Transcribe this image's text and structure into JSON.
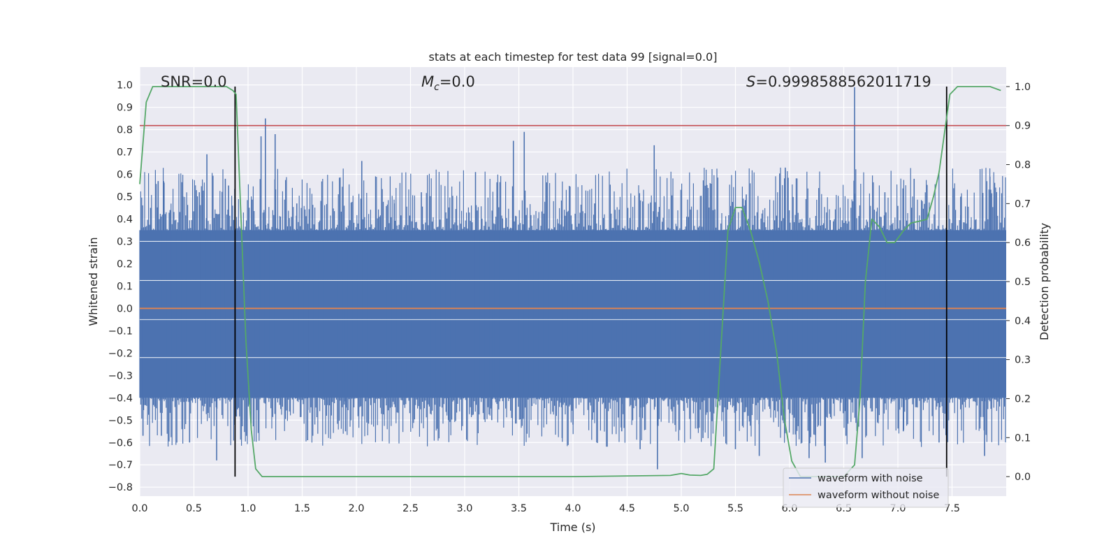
{
  "chart_data": {
    "type": "line",
    "title": "stats at each timestep for test data 99 [signal=0.0]",
    "xlabel": "Time (s)",
    "ylabel": "Whitened strain",
    "y2label": "Detection probability",
    "xlim": [
      0.0,
      8.0
    ],
    "ylim": [
      -0.84,
      1.08
    ],
    "y2lim": [
      -0.05,
      1.05
    ],
    "xticks": [
      "0.0",
      "0.5",
      "1.0",
      "1.5",
      "2.0",
      "2.5",
      "3.0",
      "3.5",
      "4.0",
      "4.5",
      "5.0",
      "5.5",
      "6.0",
      "6.5",
      "7.0",
      "7.5"
    ],
    "yticks": [
      "1.0",
      "0.9",
      "0.8",
      "0.7",
      "0.6",
      "0.5",
      "0.4",
      "0.3",
      "0.2",
      "0.1",
      "0.0",
      "−0.1",
      "−0.2",
      "−0.3",
      "−0.4",
      "−0.5",
      "−0.6",
      "−0.7",
      "−0.8"
    ],
    "y2ticks": [
      "1.0",
      "0.9",
      "0.8",
      "0.7",
      "0.6",
      "0.5",
      "0.4",
      "0.3",
      "0.2",
      "0.1",
      "0.0"
    ],
    "grid": true,
    "legend_position": "bottom-right",
    "annotations": {
      "snr": "SNR=0.0",
      "mc_symbol": "M",
      "mc_sub": "c",
      "mc_value": "=0.0",
      "s_symbol": "S",
      "s_value": "=0.9998588562011719"
    },
    "threshold_y2": 0.9,
    "vlines_x": [
      0.88,
      7.45
    ],
    "series": [
      {
        "name": "waveform with noise",
        "color": "#4c72b0",
        "noise_band": [
          -0.4,
          0.35
        ],
        "spikes": [
          {
            "x": 0.02,
            "y": 0.36
          },
          {
            "x": 0.03,
            "y": -0.57
          },
          {
            "x": 0.1,
            "y": 0.45
          },
          {
            "x": 0.17,
            "y": 0.57
          },
          {
            "x": 0.2,
            "y": -0.57
          },
          {
            "x": 0.22,
            "y": 0.57
          },
          {
            "x": 0.28,
            "y": 0.44
          },
          {
            "x": 0.4,
            "y": 0.5
          },
          {
            "x": 0.46,
            "y": -0.6
          },
          {
            "x": 0.55,
            "y": 0.52
          },
          {
            "x": 0.62,
            "y": 0.69
          },
          {
            "x": 0.71,
            "y": -0.68
          },
          {
            "x": 0.79,
            "y": 0.58
          },
          {
            "x": 0.82,
            "y": 0.55
          },
          {
            "x": 0.9,
            "y": -0.45
          },
          {
            "x": 1.12,
            "y": 0.77
          },
          {
            "x": 1.16,
            "y": 0.85
          },
          {
            "x": 1.25,
            "y": 0.78
          },
          {
            "x": 1.45,
            "y": 0.47
          },
          {
            "x": 1.55,
            "y": -0.59
          },
          {
            "x": 1.9,
            "y": -0.55
          },
          {
            "x": 2.05,
            "y": 0.66
          },
          {
            "x": 2.35,
            "y": 0.47
          },
          {
            "x": 2.6,
            "y": 0.52
          },
          {
            "x": 2.85,
            "y": -0.5
          },
          {
            "x": 3.1,
            "y": 0.61
          },
          {
            "x": 3.25,
            "y": -0.5
          },
          {
            "x": 3.45,
            "y": 0.75
          },
          {
            "x": 3.55,
            "y": 0.79
          },
          {
            "x": 3.9,
            "y": -0.58
          },
          {
            "x": 4.0,
            "y": -0.52
          },
          {
            "x": 4.2,
            "y": 0.47
          },
          {
            "x": 4.45,
            "y": -0.55
          },
          {
            "x": 4.62,
            "y": -0.63
          },
          {
            "x": 4.75,
            "y": 0.73
          },
          {
            "x": 4.78,
            "y": -0.72
          },
          {
            "x": 5.2,
            "y": -0.58
          },
          {
            "x": 5.5,
            "y": -0.63
          },
          {
            "x": 5.6,
            "y": 0.51
          },
          {
            "x": 5.72,
            "y": -0.66
          },
          {
            "x": 5.96,
            "y": 0.63
          },
          {
            "x": 6.18,
            "y": -0.67
          },
          {
            "x": 6.33,
            "y": -0.69
          },
          {
            "x": 6.52,
            "y": -0.57
          },
          {
            "x": 6.6,
            "y": 0.99
          },
          {
            "x": 6.67,
            "y": -0.67
          },
          {
            "x": 6.88,
            "y": 0.52
          },
          {
            "x": 7.05,
            "y": -0.55
          },
          {
            "x": 7.15,
            "y": 0.58
          },
          {
            "x": 7.38,
            "y": -0.6
          },
          {
            "x": 7.58,
            "y": 0.5
          },
          {
            "x": 7.8,
            "y": -0.66
          },
          {
            "x": 7.85,
            "y": 0.59
          }
        ]
      },
      {
        "name": "waveform without noise",
        "color": "#dd8452",
        "y_constant": 0.0
      },
      {
        "name": "detection probability",
        "axis": "right",
        "color": "#55a868",
        "points": [
          [
            0.0,
            0.75
          ],
          [
            0.06,
            0.96
          ],
          [
            0.12,
            1.0
          ],
          [
            0.3,
            1.0
          ],
          [
            0.5,
            1.0
          ],
          [
            0.7,
            1.0
          ],
          [
            0.8,
            1.0
          ],
          [
            0.86,
            0.99
          ],
          [
            0.89,
            0.98
          ],
          [
            0.93,
            0.7
          ],
          [
            0.98,
            0.35
          ],
          [
            1.03,
            0.12
          ],
          [
            1.07,
            0.02
          ],
          [
            1.13,
            0.0
          ],
          [
            2.0,
            0.0
          ],
          [
            3.0,
            0.0
          ],
          [
            4.0,
            0.0
          ],
          [
            4.9,
            0.003
          ],
          [
            5.0,
            0.008
          ],
          [
            5.08,
            0.004
          ],
          [
            5.18,
            0.003
          ],
          [
            5.24,
            0.006
          ],
          [
            5.3,
            0.02
          ],
          [
            5.36,
            0.3
          ],
          [
            5.43,
            0.63
          ],
          [
            5.5,
            0.69
          ],
          [
            5.56,
            0.69
          ],
          [
            5.64,
            0.63
          ],
          [
            5.72,
            0.55
          ],
          [
            5.8,
            0.45
          ],
          [
            5.88,
            0.32
          ],
          [
            5.95,
            0.15
          ],
          [
            6.02,
            0.04
          ],
          [
            6.1,
            0.0
          ],
          [
            6.3,
            0.0
          ],
          [
            6.5,
            0.0
          ],
          [
            6.6,
            0.03
          ],
          [
            6.65,
            0.2
          ],
          [
            6.7,
            0.5
          ],
          [
            6.76,
            0.66
          ],
          [
            6.83,
            0.64
          ],
          [
            6.9,
            0.6
          ],
          [
            6.97,
            0.6
          ],
          [
            7.05,
            0.63
          ],
          [
            7.12,
            0.65
          ],
          [
            7.2,
            0.655
          ],
          [
            7.27,
            0.66
          ],
          [
            7.33,
            0.72
          ],
          [
            7.38,
            0.78
          ],
          [
            7.43,
            0.88
          ],
          [
            7.48,
            0.98
          ],
          [
            7.55,
            1.0
          ],
          [
            7.7,
            1.0
          ],
          [
            7.85,
            1.0
          ],
          [
            7.95,
            0.99
          ]
        ]
      }
    ]
  }
}
